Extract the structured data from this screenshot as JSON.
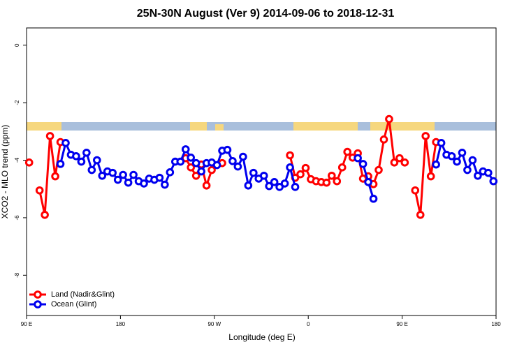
{
  "chart_data": {
    "type": "line",
    "title": "25N-30N August (Ver 9)   2014-09-06 to 2018-12-31",
    "x_label": "Longitude (deg E)",
    "y_label": "XCO2 - MLO trend (ppm)",
    "xlim": [
      90,
      540
    ],
    "xticks": [
      {
        "value": 90,
        "label": "90 E"
      },
      180,
      {
        "value": 270,
        "label": "90 W"
      },
      {
        "value": 360,
        "label": "0"
      },
      {
        "value": 450,
        "label": "90 E"
      },
      {
        "value": 540,
        "label": "180"
      }
    ],
    "ylim": [
      -9.4,
      0.6
    ],
    "yticks": [
      0,
      -2,
      -4,
      -6,
      -8
    ],
    "legend": "bottomleft",
    "series": [
      {
        "name": "Land (Nadir&Glint)",
        "color": "#ff0000",
        "x": [
          92.5,
          97.5,
          102.5,
          107.5,
          112.5,
          117.5,
          122.5,
          127.5,
          242.5,
          247.5,
          252.5,
          257.5,
          262.5,
          267.5,
          272.5,
          277.5,
          282.5,
          342.5,
          347.5,
          352.5,
          357.5,
          362.5,
          367.5,
          372.5,
          377.5,
          382.5,
          387.5,
          392.5,
          397.5,
          402.5,
          407.5,
          412.5,
          417.5,
          422.5,
          427.5,
          432.5,
          437.5,
          442.5,
          447.5,
          452.5,
          457.5,
          462.5,
          467.5,
          472.5,
          477.5,
          482.5
        ],
        "values": [
          -4.08,
          null,
          -5.05,
          -5.9,
          -3.16,
          -4.56,
          -3.37,
          null,
          -3.93,
          -4.25,
          -4.54,
          -4.15,
          -4.88,
          -4.34,
          null,
          -4.1,
          null,
          -3.83,
          -4.61,
          -4.49,
          -4.27,
          -4.66,
          -4.73,
          -4.76,
          -4.78,
          -4.54,
          -4.73,
          -4.25,
          -3.71,
          -3.91,
          -3.76,
          -4.64,
          -4.56,
          -4.83,
          -4.34,
          -3.28,
          -2.57,
          -4.08,
          -3.93,
          -4.08,
          null,
          -5.05,
          -5.9,
          -3.16,
          -4.56,
          -3.37
        ]
      },
      {
        "name": "Ocean (Glint)",
        "color": "#0000ee",
        "x": [
          122.5,
          127.5,
          132.5,
          137.5,
          142.5,
          147.5,
          152.5,
          157.5,
          162.5,
          167.5,
          172.5,
          177.5,
          182.5,
          187.5,
          192.5,
          197.5,
          202.5,
          207.5,
          212.5,
          217.5,
          222.5,
          227.5,
          232.5,
          237.5,
          242.5,
          247.5,
          252.5,
          257.5,
          262.5,
          267.5,
          272.5,
          277.5,
          282.5,
          287.5,
          292.5,
          297.5,
          302.5,
          307.5,
          312.5,
          317.5,
          322.5,
          327.5,
          332.5,
          337.5,
          342.5,
          347.5,
          352.5,
          407.5,
          412.5,
          417.5,
          422.5,
          427.5,
          482.5,
          487.5,
          492.5,
          497.5,
          502.5,
          507.5,
          512.5,
          517.5,
          522.5,
          527.5,
          532.5,
          537.5
        ],
        "values": [
          -4.13,
          -3.4,
          -3.81,
          -3.86,
          -4.05,
          -3.74,
          -4.34,
          -4.0,
          -4.54,
          -4.39,
          -4.44,
          -4.68,
          -4.51,
          -4.78,
          -4.51,
          -4.73,
          -4.81,
          -4.64,
          -4.68,
          -4.61,
          -4.85,
          -4.42,
          -4.05,
          -4.05,
          -3.62,
          -3.91,
          -4.1,
          -4.39,
          -4.1,
          -4.08,
          -4.17,
          -3.67,
          -3.64,
          -4.03,
          -4.22,
          -3.88,
          -4.88,
          -4.44,
          -4.64,
          -4.54,
          -4.9,
          -4.76,
          -4.93,
          -4.81,
          -4.25,
          -4.93,
          null,
          -3.93,
          -4.13,
          -4.76,
          -5.34,
          null,
          -4.15,
          -3.4,
          -3.81,
          -3.86,
          -4.05,
          -3.74,
          -4.34,
          -4.0,
          -4.54,
          -4.39,
          -4.44,
          -4.73
        ]
      }
    ]
  }
}
